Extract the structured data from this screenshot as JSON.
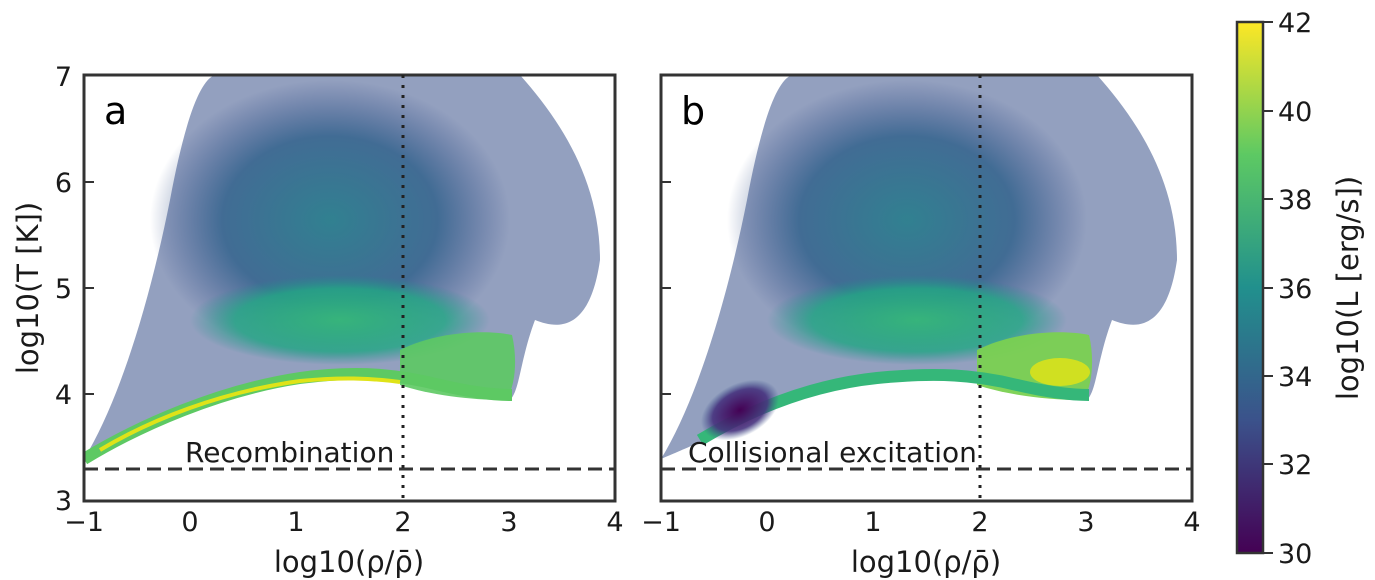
{
  "chart_data": [
    {
      "type": "heatmap",
      "panel_label": "a",
      "annotation": "Recombination",
      "xlabel": "log10(ρ/ρ̄)",
      "ylabel": "log10(T [K])",
      "xlim": [
        -1,
        4
      ],
      "ylim": [
        3,
        7
      ],
      "xticks": [
        "−1",
        "0",
        "1",
        "2",
        "3",
        "4"
      ],
      "yticks": [
        "3",
        "4",
        "5",
        "6",
        "7"
      ],
      "reference_lines": {
        "horizontal_dashed_y": 3.3,
        "vertical_dotted_x": 2
      },
      "lower_envelope": {
        "x": [
          -1,
          -0.5,
          0,
          0.5,
          1,
          1.5,
          2,
          2.5,
          3
        ],
        "y": [
          3.35,
          3.58,
          3.78,
          3.95,
          4.07,
          4.12,
          4.08,
          4.01,
          3.96
        ]
      },
      "dense_ridge_log10L": 41
    },
    {
      "type": "heatmap",
      "panel_label": "b",
      "annotation": "Collisional excitation",
      "xlabel": "log10(ρ/ρ̄)",
      "xlim": [
        -1,
        4
      ],
      "ylim": [
        3,
        7
      ],
      "xticks": [
        "−1",
        "0",
        "1",
        "2",
        "3",
        "4"
      ],
      "reference_lines": {
        "horizontal_dashed_y": 3.3,
        "vertical_dotted_x": 2
      },
      "lower_envelope": {
        "x": [
          -1,
          -0.5,
          0,
          0.5,
          1,
          1.5,
          2,
          2.5,
          3
        ],
        "y": [
          3.35,
          3.58,
          3.78,
          3.95,
          4.07,
          4.12,
          4.08,
          4.01,
          3.96
        ]
      },
      "dense_ridge_log10L": 40,
      "low_density_log10L": 30
    }
  ],
  "colorbar": {
    "label": "log10(L [erg/s])",
    "range": [
      30,
      42
    ],
    "ticks": [
      "30",
      "32",
      "34",
      "36",
      "38",
      "40",
      "42"
    ],
    "colormap": [
      "#440154",
      "#3b528b",
      "#21908d",
      "#5dc963",
      "#fde725"
    ]
  }
}
